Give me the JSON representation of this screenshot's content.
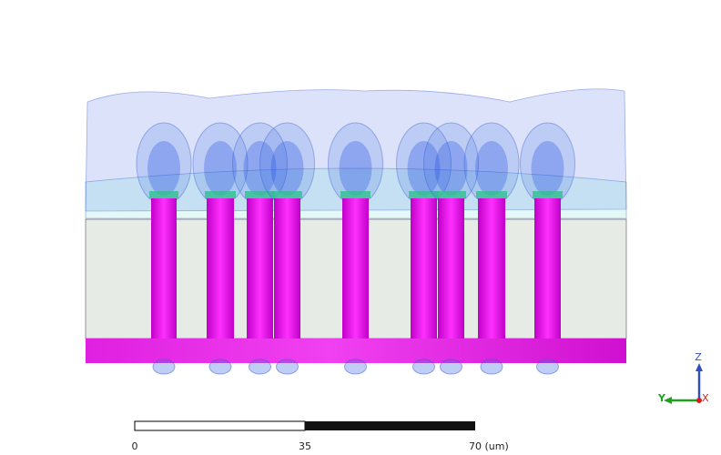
{
  "scale_bar": {
    "labels": [
      "0",
      "35",
      "70 (um)"
    ]
  },
  "axes": {
    "z": "Z",
    "y": "Y",
    "x": "X"
  }
}
